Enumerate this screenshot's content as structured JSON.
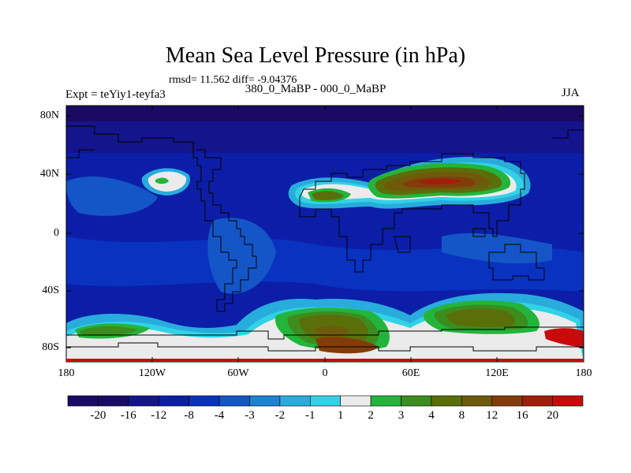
{
  "header": {
    "title": "Mean Sea Level Pressure (in hPa)",
    "stats": "rmsd= 11.562 diff= -9.04376",
    "left_label": "Expt = teYiy1-teyfa3",
    "center_label": "380_0_MaBP - 000_0_MaBP",
    "right_label": "JJA"
  },
  "axes": {
    "lat_labels": [
      "80N",
      "40N",
      "0",
      "40S",
      "80S"
    ],
    "lon_labels": [
      "180",
      "120W",
      "60W",
      "0",
      "60E",
      "120E",
      "180"
    ]
  },
  "colorbar": {
    "labels": [
      "-20",
      "-16",
      "-12",
      "-8",
      "-4",
      "-3",
      "-2",
      "-1",
      "1",
      "2",
      "3",
      "4",
      "8",
      "12",
      "16",
      "20"
    ],
    "colors": [
      "#1a0a64",
      "#14148c",
      "#0c1ea8",
      "#0a32c0",
      "#1456c8",
      "#1e82d2",
      "#28acdc",
      "#32d2e6",
      "#ebebeb",
      "#23b43c",
      "#3c8c1e",
      "#5a6e0a",
      "#6e5a0a",
      "#823c0a",
      "#a01e0a",
      "#c80a0a"
    ]
  },
  "map": {
    "projection": "cylindrical-equidistant",
    "variable": "Mean Sea Level Pressure difference (hPa)"
  }
}
